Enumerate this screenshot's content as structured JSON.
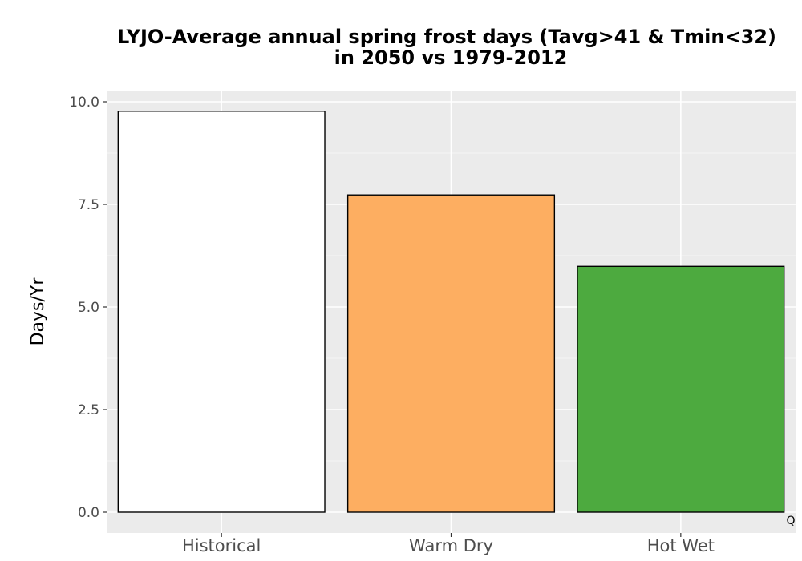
{
  "chart_data": {
    "type": "bar",
    "title_lines": [
      "LYJO-Average annual spring frost days (Tavg>41 & Tmin<32)",
      "in 2050 vs 1979-2012"
    ],
    "xlabel": "",
    "ylabel": "Days/Yr",
    "categories": [
      "Historical",
      "Warm Dry",
      "Hot Wet"
    ],
    "values": [
      9.77,
      7.73,
      5.99
    ],
    "colors": [
      "#ffffff",
      "#fdae61",
      "#4daa3f"
    ],
    "ylim": [
      0,
      10.5
    ],
    "yticks": [
      0,
      2.5,
      5,
      7.5,
      10
    ],
    "ytick_labels": [
      "0.0",
      "2.5",
      "5.0",
      "7.5",
      "10.0"
    ],
    "grid": true,
    "panel_background": "#ebebeb",
    "corner_mark": "Q"
  }
}
